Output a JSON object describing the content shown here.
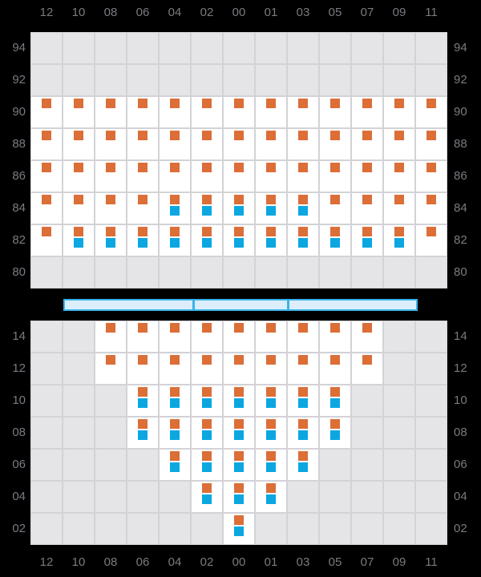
{
  "colors": {
    "background": "#000000",
    "gridline": "#d3d3d7",
    "cell_empty": "#e5e5e8",
    "cell_data": "#ffffff",
    "marker_orange": "#dc6e37",
    "marker_blue": "#0ba7e1",
    "scrollbar_border": "#3ab3ea",
    "scrollbar_fill": "#dceefb",
    "axis_label": "#7a7a82"
  },
  "axes": {
    "column_labels": [
      "12",
      "10",
      "08",
      "06",
      "04",
      "02",
      "00",
      "01",
      "03",
      "05",
      "07",
      "09",
      "11"
    ],
    "top_panel_row_labels": [
      "94",
      "92",
      "90",
      "88",
      "86",
      "84",
      "82",
      "80"
    ],
    "bottom_panel_row_labels": [
      "14",
      "12",
      "10",
      "08",
      "06",
      "04",
      "02"
    ]
  },
  "scrollbar": {
    "segments": 3
  },
  "chart_data": [
    {
      "type": "heatmap",
      "name": "top-panel",
      "x_tick_labels": [
        "12",
        "10",
        "08",
        "06",
        "04",
        "02",
        "00",
        "01",
        "03",
        "05",
        "07",
        "09",
        "11"
      ],
      "y_tick_labels": [
        "94",
        "92",
        "90",
        "88",
        "86",
        "84",
        "82",
        "80"
      ],
      "x_axis_position": "top",
      "y_axis_position": "both",
      "cell_codes": {
        ".": "no-data",
        "O": "orange-marker",
        "B": "orange-and-blue-markers"
      },
      "rows": [
        {
          "y": "94",
          "cells": "............."
        },
        {
          "y": "92",
          "cells": "............."
        },
        {
          "y": "90",
          "cells": "OOOOOOOOOOOOO"
        },
        {
          "y": "88",
          "cells": "OOOOOOOOOOOOO"
        },
        {
          "y": "86",
          "cells": "OOOOOOOOOOOOO"
        },
        {
          "y": "84",
          "cells": "OOOOBBBBBOOOO"
        },
        {
          "y": "82",
          "cells": "OBBBBBBBBBBBO"
        },
        {
          "y": "80",
          "cells": "............."
        }
      ]
    },
    {
      "type": "heatmap",
      "name": "bottom-panel",
      "x_tick_labels": [
        "12",
        "10",
        "08",
        "06",
        "04",
        "02",
        "00",
        "01",
        "03",
        "05",
        "07",
        "09",
        "11"
      ],
      "y_tick_labels": [
        "14",
        "12",
        "10",
        "08",
        "06",
        "04",
        "02"
      ],
      "x_axis_position": "bottom",
      "y_axis_position": "both",
      "cell_codes": {
        ".": "no-data",
        "O": "orange-marker",
        "B": "orange-and-blue-markers"
      },
      "rows": [
        {
          "y": "14",
          "cells": "..OOOOOOOOO.."
        },
        {
          "y": "12",
          "cells": "..OOOOOOOOO.."
        },
        {
          "y": "10",
          "cells": "...BBBBBBB..."
        },
        {
          "y": "08",
          "cells": "...BBBBBBB..."
        },
        {
          "y": "06",
          "cells": "....BBBBB...."
        },
        {
          "y": "04",
          "cells": ".....BBB....."
        },
        {
          "y": "02",
          "cells": "......B......"
        }
      ]
    }
  ]
}
